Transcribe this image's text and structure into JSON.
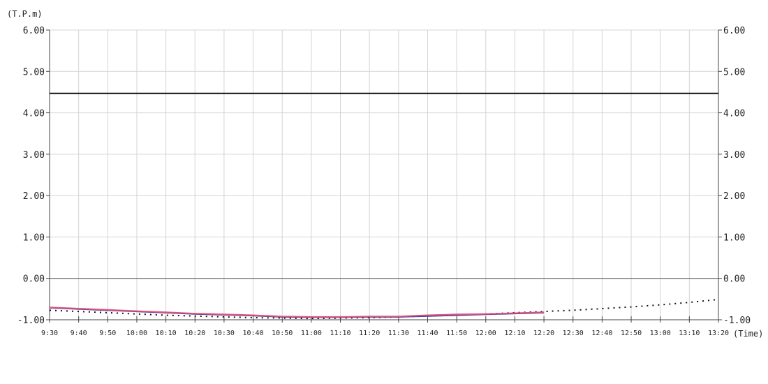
{
  "chart_data": {
    "type": "line",
    "y_unit_label": "(T.P.m)",
    "x_unit_label": "(Time)",
    "ylim": [
      -1.0,
      6.0
    ],
    "y_ticks": [
      "6.00",
      "5.00",
      "4.00",
      "3.00",
      "2.00",
      "1.00",
      "0.00",
      "-1.00"
    ],
    "y_tick_values": [
      6,
      5,
      4,
      3,
      2,
      1,
      0,
      -1
    ],
    "x_tick_labels": [
      "9:30",
      "9:40",
      "9:50",
      "10:00",
      "10:10",
      "10:20",
      "10:30",
      "10:40",
      "10:50",
      "11:00",
      "11:10",
      "11:20",
      "11:30",
      "11:40",
      "11:50",
      "12:00",
      "12:10",
      "12:20",
      "12:30",
      "12:40",
      "12:50",
      "13:00",
      "13:10",
      "13:20"
    ],
    "grid": true,
    "reference_line": {
      "value": 4.47,
      "color": "#111111"
    },
    "zero_line": {
      "value": 0.0,
      "color": "#555555"
    },
    "series": [
      {
        "style": "dotted",
        "color": "#111111",
        "values": [
          -0.77,
          -0.8,
          -0.83,
          -0.86,
          -0.89,
          -0.91,
          -0.93,
          -0.95,
          -0.96,
          -0.97,
          -0.96,
          -0.95,
          -0.93,
          -0.91,
          -0.89,
          -0.86,
          -0.83,
          -0.8,
          -0.77,
          -0.73,
          -0.69,
          -0.64,
          -0.58,
          -0.51
        ]
      },
      {
        "style": "solid",
        "color": "#3a3aa8",
        "values": [
          -0.71,
          -0.74,
          -0.77,
          -0.8,
          -0.83,
          -0.86,
          -0.88,
          -0.9,
          -0.93,
          -0.94,
          -0.94,
          -0.93,
          -0.93,
          -0.91,
          -0.89,
          -0.87,
          -0.85,
          -0.83
        ]
      },
      {
        "style": "solid",
        "color": "#e0507a",
        "values": [
          -0.7,
          -0.73,
          -0.76,
          -0.79,
          -0.82,
          -0.85,
          -0.87,
          -0.89,
          -0.92,
          -0.93,
          -0.93,
          -0.92,
          -0.92,
          -0.89,
          -0.87,
          -0.86,
          -0.84,
          -0.82
        ]
      }
    ]
  }
}
